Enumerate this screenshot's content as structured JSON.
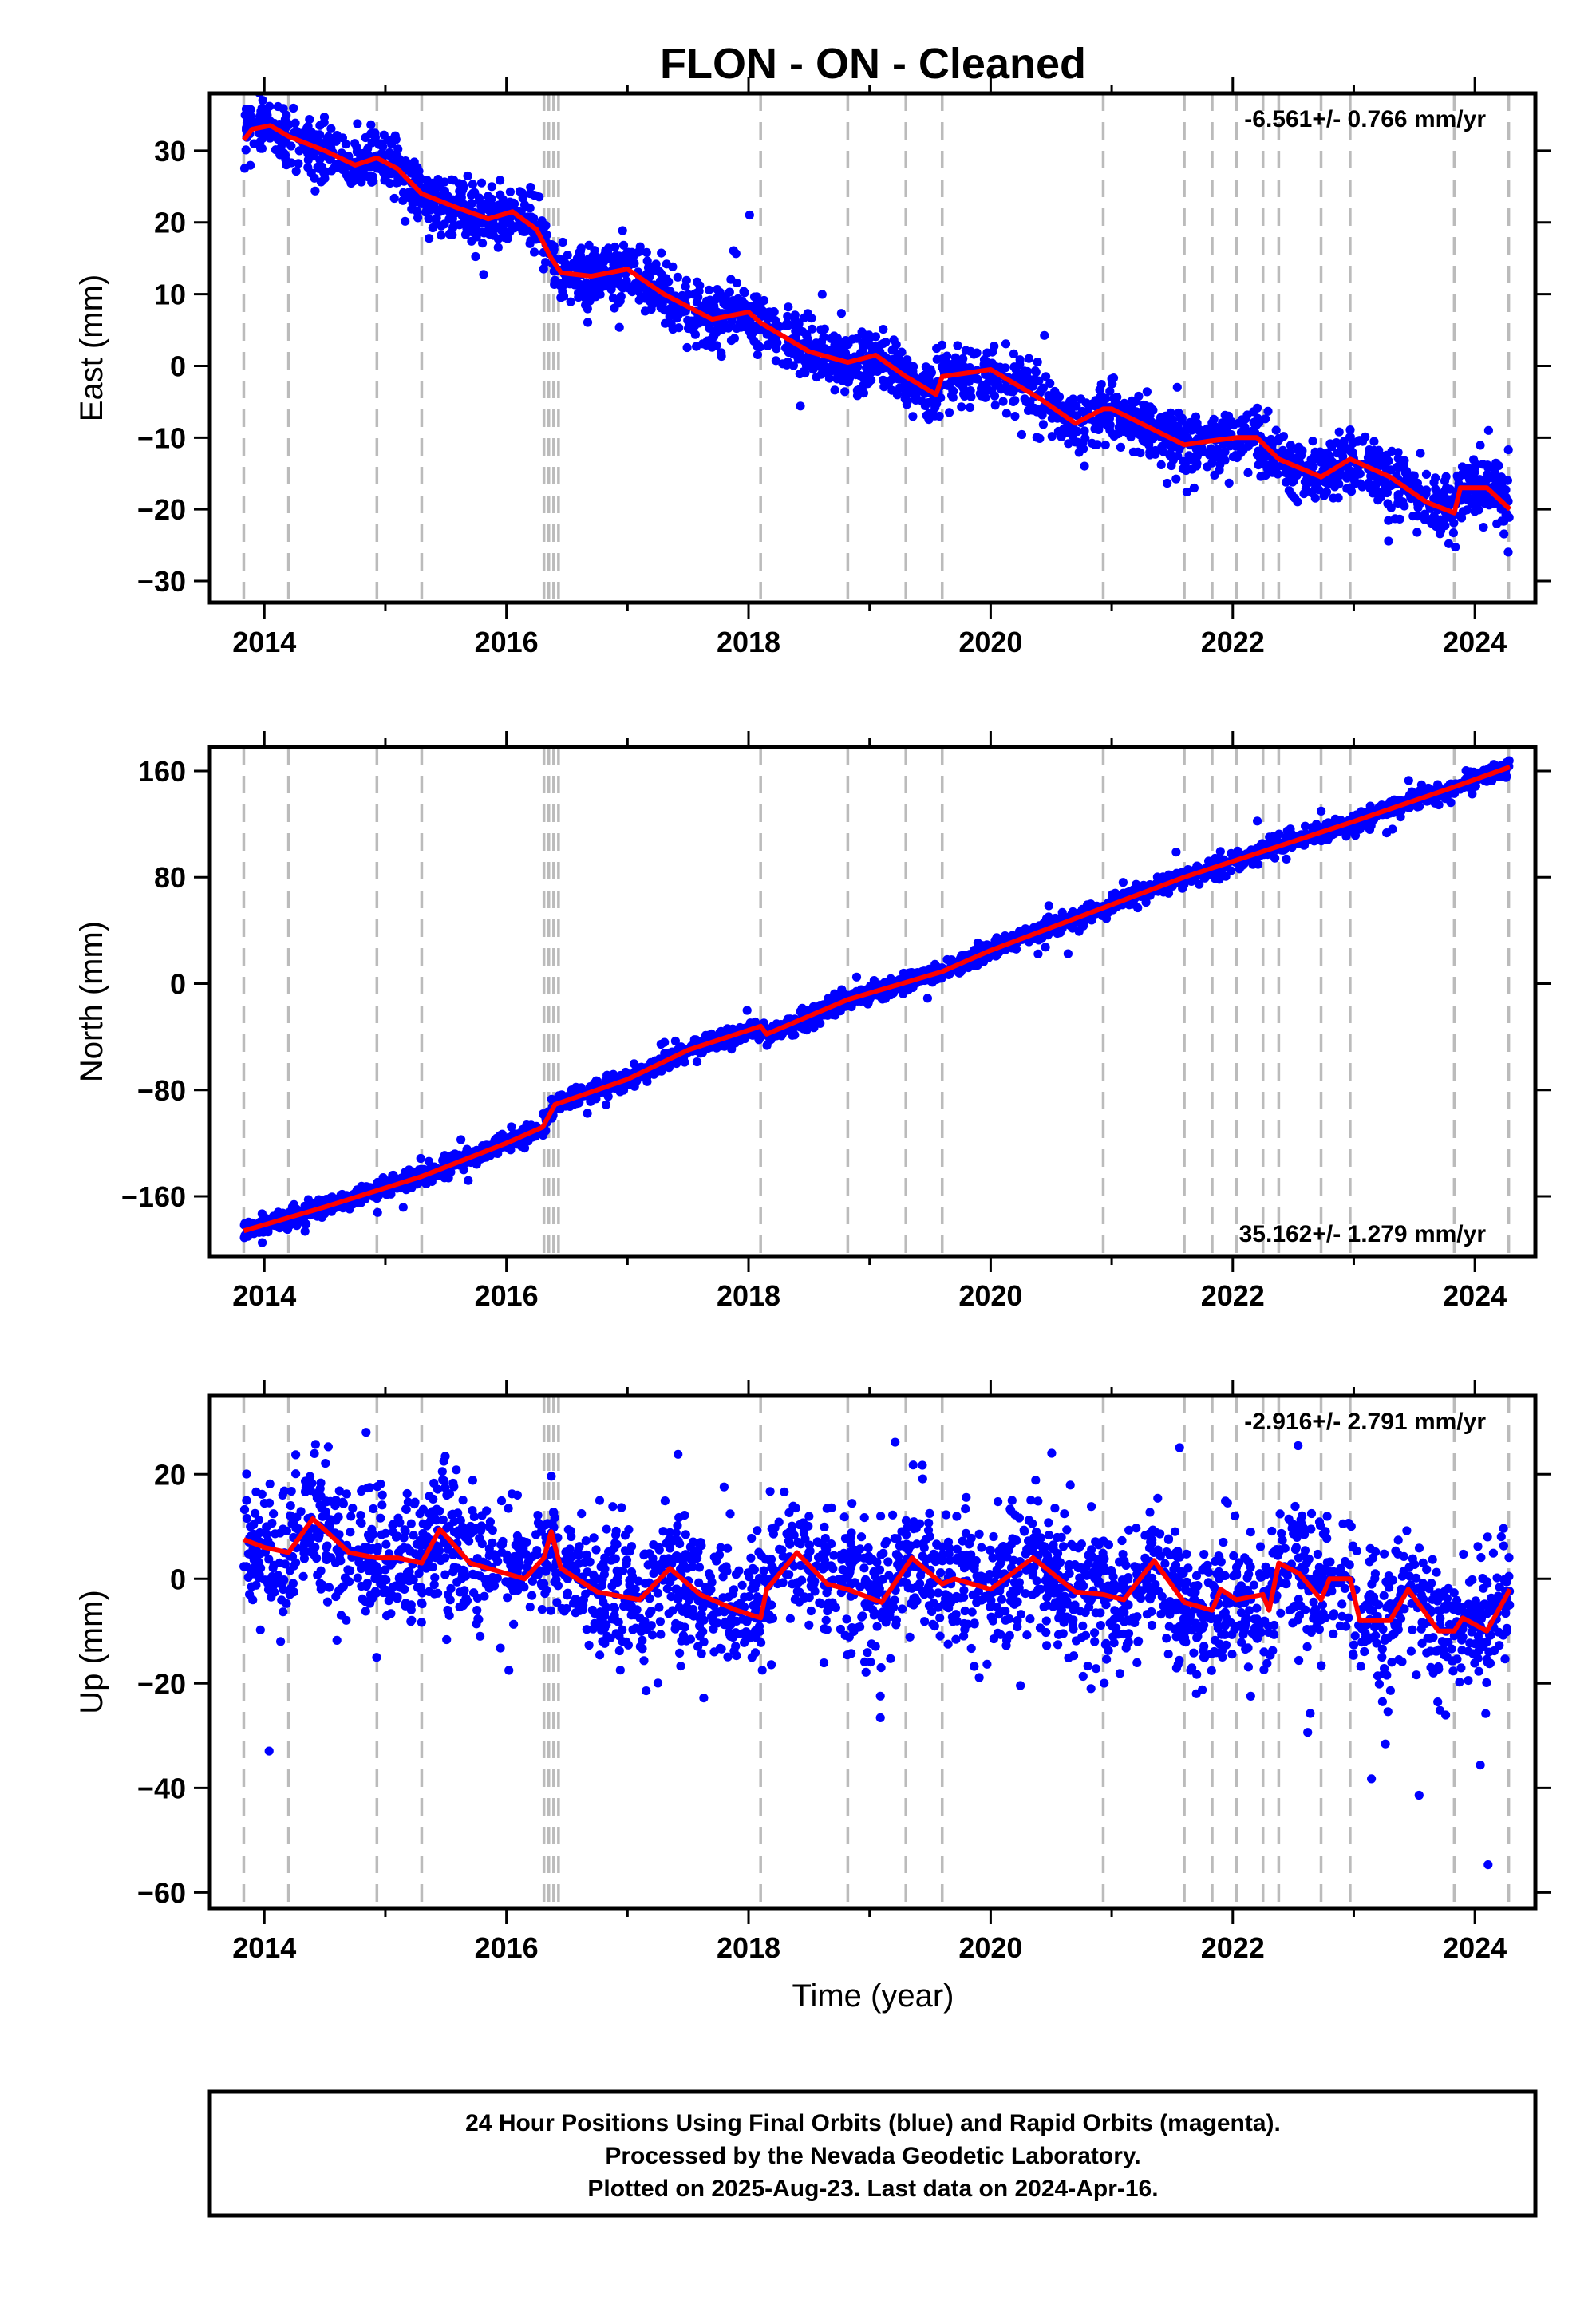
{
  "title": "FLON  - ON - Cleaned",
  "xlabel": "Time (year)",
  "caption": [
    "24 Hour Positions Using Final Orbits (blue) and Rapid Orbits (magenta).",
    "Processed by the Nevada Geodetic Laboratory.",
    "Plotted on 2025-Aug-23. Last data on 2024-Apr-16."
  ],
  "colors": {
    "points": "#0000ff",
    "model": "#ff0000",
    "breaks": "#bbbbbb",
    "frame": "#000000"
  },
  "chart_data": [
    {
      "type": "scatter",
      "ylabel": "East (mm)",
      "rate_label": "-6.561+/- 0.766 mm/yr",
      "rate_position": "top-right",
      "xlim": [
        2013.55,
        2024.5
      ],
      "ylim": [
        -33,
        38
      ],
      "x_ticks": [
        2014,
        2016,
        2018,
        2020,
        2022,
        2024
      ],
      "y_ticks": [
        -30,
        -20,
        -10,
        0,
        10,
        20,
        30
      ],
      "x_range_data": [
        2013.83,
        2024.29
      ],
      "breaks": [
        2013.83,
        2014.2,
        2014.93,
        2015.3,
        2016.31,
        2016.35,
        2016.39,
        2016.43,
        2018.1,
        2018.82,
        2019.3,
        2019.6,
        2020.93,
        2021.6,
        2021.83,
        2022.03,
        2022.25,
        2022.38,
        2022.73,
        2022.97,
        2023.83,
        2024.28
      ],
      "model": [
        [
          2013.83,
          31.5
        ],
        [
          2013.9,
          33
        ],
        [
          2014.05,
          33.5
        ],
        [
          2014.2,
          32
        ],
        [
          2014.5,
          30
        ],
        [
          2014.75,
          28
        ],
        [
          2014.93,
          29
        ],
        [
          2015.1,
          27.5
        ],
        [
          2015.3,
          24
        ],
        [
          2015.6,
          22
        ],
        [
          2015.85,
          20.5
        ],
        [
          2016.05,
          21.5
        ],
        [
          2016.25,
          19
        ],
        [
          2016.37,
          15
        ],
        [
          2016.45,
          13
        ],
        [
          2016.7,
          12.5
        ],
        [
          2017.0,
          13.5
        ],
        [
          2017.3,
          10
        ],
        [
          2017.7,
          6.5
        ],
        [
          2018.0,
          7.5
        ],
        [
          2018.1,
          6
        ],
        [
          2018.5,
          2
        ],
        [
          2018.82,
          0.5
        ],
        [
          2019.05,
          1.5
        ],
        [
          2019.3,
          -1.5
        ],
        [
          2019.55,
          -4
        ],
        [
          2019.6,
          -1.5
        ],
        [
          2020.0,
          -0.5
        ],
        [
          2020.4,
          -4.5
        ],
        [
          2020.7,
          -8
        ],
        [
          2020.93,
          -6
        ],
        [
          2021.0,
          -6
        ],
        [
          2021.3,
          -8.5
        ],
        [
          2021.6,
          -11
        ],
        [
          2021.8,
          -10.5
        ],
        [
          2022.03,
          -10
        ],
        [
          2022.2,
          -10
        ],
        [
          2022.38,
          -13
        ],
        [
          2022.73,
          -15.5
        ],
        [
          2022.97,
          -13
        ],
        [
          2023.3,
          -15.5
        ],
        [
          2023.6,
          -19
        ],
        [
          2023.83,
          -20.5
        ],
        [
          2023.88,
          -17
        ],
        [
          2024.1,
          -17
        ],
        [
          2024.29,
          -20
        ]
      ],
      "points_seed": 11,
      "points_sd": 2.1,
      "points_count": 2600
    },
    {
      "type": "scatter",
      "ylabel": "North (mm)",
      "rate_label": "35.162+/- 1.279 mm/yr",
      "rate_position": "bottom-right",
      "xlim": [
        2013.55,
        2024.5
      ],
      "ylim": [
        -205,
        178
      ],
      "x_ticks": [
        2014,
        2016,
        2018,
        2020,
        2022,
        2024
      ],
      "y_ticks": [
        -160,
        -80,
        0,
        80,
        160
      ],
      "x_range_data": [
        2013.83,
        2024.29
      ],
      "breaks": [
        2013.83,
        2014.2,
        2014.93,
        2015.3,
        2016.31,
        2016.35,
        2016.39,
        2016.43,
        2018.1,
        2018.82,
        2019.3,
        2019.6,
        2020.93,
        2021.6,
        2021.83,
        2022.03,
        2022.25,
        2022.38,
        2022.73,
        2022.97,
        2023.83,
        2024.28
      ],
      "model": [
        [
          2013.83,
          -186
        ],
        [
          2014.5,
          -168
        ],
        [
          2015.3,
          -145
        ],
        [
          2016.0,
          -120
        ],
        [
          2016.3,
          -108
        ],
        [
          2016.4,
          -91
        ],
        [
          2017.0,
          -72
        ],
        [
          2017.5,
          -50
        ],
        [
          2018.1,
          -32
        ],
        [
          2018.15,
          -38
        ],
        [
          2018.82,
          -12
        ],
        [
          2019.6,
          9
        ],
        [
          2020.0,
          25
        ],
        [
          2020.93,
          57
        ],
        [
          2021.6,
          80
        ],
        [
          2022.4,
          104
        ],
        [
          2023.0,
          122
        ],
        [
          2023.83,
          148
        ],
        [
          2024.29,
          163
        ]
      ],
      "points_seed": 23,
      "points_sd": 3.4,
      "points_count": 2600
    },
    {
      "type": "scatter",
      "ylabel": "Up (mm)",
      "rate_label": "-2.916+/- 2.791 mm/yr",
      "rate_position": "top-right",
      "xlim": [
        2013.55,
        2024.5
      ],
      "ylim": [
        -63,
        35
      ],
      "x_ticks": [
        2014,
        2016,
        2018,
        2020,
        2022,
        2024
      ],
      "y_ticks": [
        -60,
        -40,
        -20,
        0,
        20
      ],
      "x_range_data": [
        2013.83,
        2024.29
      ],
      "breaks": [
        2013.83,
        2014.2,
        2014.93,
        2015.3,
        2016.31,
        2016.35,
        2016.39,
        2016.43,
        2018.1,
        2018.82,
        2019.3,
        2019.6,
        2020.93,
        2021.6,
        2021.83,
        2022.03,
        2022.25,
        2022.38,
        2022.73,
        2022.97,
        2023.83,
        2024.28
      ],
      "model": [
        [
          2013.83,
          7.5
        ],
        [
          2014.0,
          6
        ],
        [
          2014.2,
          5
        ],
        [
          2014.4,
          11.5
        ],
        [
          2014.7,
          5
        ],
        [
          2014.93,
          4
        ],
        [
          2015.1,
          4
        ],
        [
          2015.3,
          3
        ],
        [
          2015.45,
          9.5
        ],
        [
          2015.7,
          3
        ],
        [
          2016.0,
          1
        ],
        [
          2016.15,
          0
        ],
        [
          2016.31,
          4
        ],
        [
          2016.37,
          9
        ],
        [
          2016.45,
          2
        ],
        [
          2016.75,
          -2.5
        ],
        [
          2017.1,
          -4
        ],
        [
          2017.35,
          2
        ],
        [
          2017.6,
          -3
        ],
        [
          2017.9,
          -6
        ],
        [
          2018.1,
          -7.5
        ],
        [
          2018.15,
          -2
        ],
        [
          2018.4,
          5
        ],
        [
          2018.65,
          -1
        ],
        [
          2018.82,
          -2
        ],
        [
          2019.1,
          -4.5
        ],
        [
          2019.35,
          4
        ],
        [
          2019.6,
          -1
        ],
        [
          2019.7,
          0
        ],
        [
          2020.0,
          -2
        ],
        [
          2020.35,
          4
        ],
        [
          2020.7,
          -2.5
        ],
        [
          2020.93,
          -3
        ],
        [
          2021.1,
          -4
        ],
        [
          2021.35,
          3.5
        ],
        [
          2021.6,
          -4.5
        ],
        [
          2021.83,
          -6
        ],
        [
          2021.9,
          -2
        ],
        [
          2022.03,
          -4
        ],
        [
          2022.25,
          -3
        ],
        [
          2022.3,
          -6
        ],
        [
          2022.38,
          3
        ],
        [
          2022.55,
          1
        ],
        [
          2022.73,
          -4
        ],
        [
          2022.8,
          0
        ],
        [
          2022.97,
          0
        ],
        [
          2023.05,
          -8
        ],
        [
          2023.3,
          -8
        ],
        [
          2023.45,
          -2
        ],
        [
          2023.7,
          -10
        ],
        [
          2023.83,
          -10
        ],
        [
          2023.9,
          -7.5
        ],
        [
          2024.1,
          -10
        ],
        [
          2024.29,
          -2
        ]
      ],
      "points_seed": 37,
      "points_sd": 6.5,
      "points_count": 2600
    }
  ]
}
